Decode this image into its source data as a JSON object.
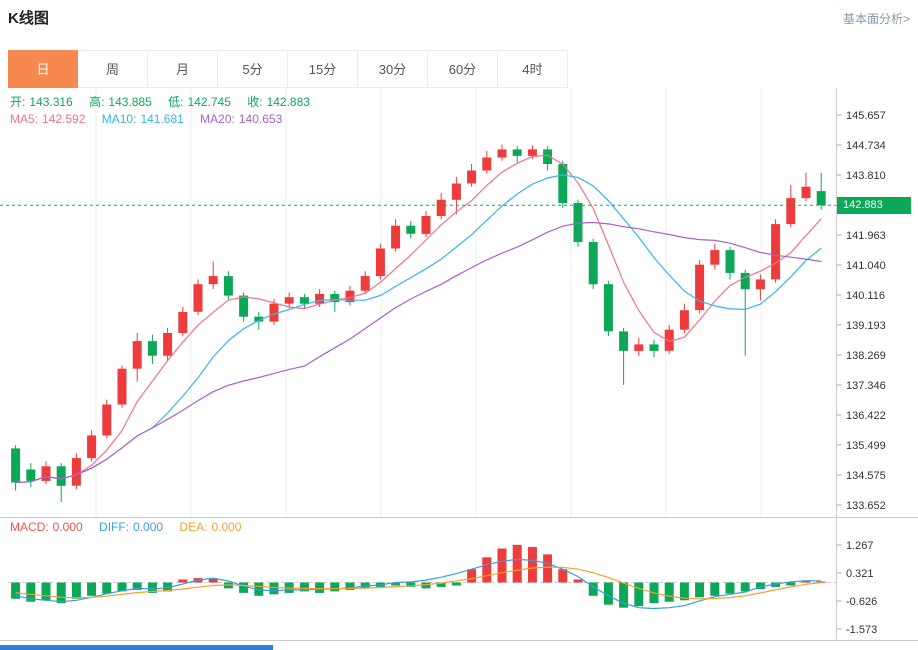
{
  "header": {
    "title": "K线图",
    "link": "基本面分析>"
  },
  "tabs": {
    "items": [
      "日",
      "周",
      "月",
      "5分",
      "15分",
      "30分",
      "60分",
      "4时"
    ],
    "selected_index": 0
  },
  "ohlc": {
    "open_label": "开:",
    "open_value": "143.316",
    "high_label": "高:",
    "high_value": "143.885",
    "low_label": "低:",
    "low_value": "142.745",
    "close_label": "收:",
    "close_value": "142.883"
  },
  "ma": {
    "ma5_label": "MA5:",
    "ma5_value": "142.592",
    "ma10_label": "MA10:",
    "ma10_value": "141.681",
    "ma20_label": "MA20:",
    "ma20_value": "140.653"
  },
  "macd_info": {
    "macd_label": "MACD:",
    "macd_value": "0.000",
    "diff_label": "DIFF:",
    "diff_value": "0.000",
    "dea_label": "DEA:",
    "dea_value": "0.000"
  },
  "price_tag": "142.883",
  "colors": {
    "tab_selected_bg": "#f7884e",
    "up": "#ee3b3b",
    "down": "#0ca757",
    "ma5": "#f2708c",
    "ma10": "#36b5e8",
    "ma20": "#a862c8",
    "diff": "#3a9de8",
    "dea": "#f6a12f",
    "macd_label": "#f05050",
    "link": "#8a97a8",
    "scrollbar": "#2f80d9",
    "grid": "#ededed",
    "axis": "#cccccc",
    "text": "#333333"
  },
  "chart_data": {
    "type": "candlestick",
    "title": "K线图",
    "timeframe": "日",
    "main": {
      "y_axis_labels": [
        "145.657",
        "144.734",
        "143.810",
        "142.883",
        "141.963",
        "141.040",
        "140.116",
        "139.193",
        "138.269",
        "137.346",
        "136.422",
        "135.499",
        "134.575",
        "133.652"
      ],
      "current_price_index": 3,
      "current_price": 142.883,
      "ma_windows": [
        5,
        10,
        20
      ],
      "candles_ohlc": [
        [
          135.4,
          135.5,
          134.1,
          134.35
        ],
        [
          134.75,
          134.95,
          134.2,
          134.4
        ],
        [
          134.4,
          135.0,
          134.3,
          134.85
        ],
        [
          134.85,
          134.95,
          133.75,
          134.25
        ],
        [
          134.25,
          135.25,
          134.15,
          135.1
        ],
        [
          135.1,
          135.95,
          135.0,
          135.8
        ],
        [
          135.8,
          136.9,
          135.7,
          136.75
        ],
        [
          136.75,
          137.95,
          136.65,
          137.85
        ],
        [
          137.85,
          138.95,
          137.45,
          138.7
        ],
        [
          138.7,
          138.9,
          138.0,
          138.25
        ],
        [
          138.25,
          139.1,
          138.1,
          138.95
        ],
        [
          138.95,
          139.75,
          138.85,
          139.6
        ],
        [
          139.6,
          140.6,
          139.5,
          140.45
        ],
        [
          140.45,
          141.15,
          140.3,
          140.7
        ],
        [
          140.7,
          140.85,
          139.95,
          140.1
        ],
        [
          140.1,
          140.2,
          139.3,
          139.45
        ],
        [
          139.45,
          139.6,
          139.05,
          139.3
        ],
        [
          139.3,
          140.0,
          139.2,
          139.85
        ],
        [
          139.85,
          140.2,
          139.7,
          140.05
        ],
        [
          140.05,
          140.15,
          139.7,
          139.85
        ],
        [
          139.85,
          140.3,
          139.75,
          140.15
        ],
        [
          140.15,
          140.25,
          139.6,
          139.9
        ],
        [
          139.9,
          140.4,
          139.8,
          140.25
        ],
        [
          140.25,
          140.85,
          140.15,
          140.7
        ],
        [
          140.7,
          141.7,
          140.6,
          141.55
        ],
        [
          141.55,
          142.45,
          141.45,
          142.25
        ],
        [
          142.25,
          142.4,
          141.85,
          142.0
        ],
        [
          142.0,
          142.7,
          141.9,
          142.55
        ],
        [
          142.55,
          143.25,
          142.45,
          143.05
        ],
        [
          143.05,
          143.75,
          142.6,
          143.55
        ],
        [
          143.55,
          144.15,
          143.45,
          143.95
        ],
        [
          143.95,
          144.55,
          143.85,
          144.35
        ],
        [
          144.35,
          144.75,
          144.25,
          144.6
        ],
        [
          144.6,
          144.7,
          144.2,
          144.4
        ],
        [
          144.4,
          144.73,
          144.3,
          144.6
        ],
        [
          144.6,
          144.7,
          143.95,
          144.15
        ],
        [
          144.15,
          144.25,
          142.8,
          142.95
        ],
        [
          142.95,
          143.05,
          141.6,
          141.75
        ],
        [
          141.75,
          141.85,
          140.3,
          140.45
        ],
        [
          140.45,
          140.55,
          138.85,
          139.0
        ],
        [
          139.0,
          139.1,
          137.35,
          138.4
        ],
        [
          138.4,
          138.8,
          138.25,
          138.6
        ],
        [
          138.6,
          138.75,
          138.2,
          138.4
        ],
        [
          138.4,
          139.2,
          138.3,
          139.05
        ],
        [
          139.05,
          139.85,
          138.95,
          139.65
        ],
        [
          139.65,
          141.2,
          139.55,
          141.05
        ],
        [
          141.05,
          141.7,
          140.9,
          141.5
        ],
        [
          141.5,
          141.6,
          140.6,
          140.8
        ],
        [
          140.8,
          140.9,
          138.25,
          140.3
        ],
        [
          140.3,
          140.75,
          139.95,
          140.6
        ],
        [
          140.6,
          142.45,
          140.5,
          142.3
        ],
        [
          142.3,
          143.5,
          142.2,
          143.1
        ],
        [
          143.1,
          143.88,
          143.0,
          143.45
        ],
        [
          143.316,
          143.885,
          142.745,
          142.883
        ]
      ]
    },
    "macd": {
      "y_axis_labels": [
        "1.267",
        "0.321",
        "-0.626",
        "-1.573"
      ],
      "histogram": [
        -0.55,
        -0.65,
        -0.6,
        -0.7,
        -0.55,
        -0.45,
        -0.38,
        -0.3,
        -0.25,
        -0.35,
        -0.3,
        0.1,
        0.15,
        0.12,
        -0.2,
        -0.35,
        -0.45,
        -0.4,
        -0.35,
        -0.3,
        -0.35,
        -0.3,
        -0.25,
        -0.2,
        -0.15,
        -0.1,
        -0.15,
        -0.2,
        -0.15,
        -0.1,
        0.45,
        0.85,
        1.15,
        1.27,
        1.2,
        0.95,
        0.45,
        0.1,
        -0.45,
        -0.75,
        -0.85,
        -0.8,
        -0.7,
        -0.65,
        -0.6,
        -0.5,
        -0.45,
        -0.38,
        -0.3,
        -0.22,
        -0.15,
        -0.1,
        0.05,
        0.03
      ],
      "diff_line": [
        -0.45,
        -0.55,
        -0.6,
        -0.65,
        -0.6,
        -0.5,
        -0.38,
        -0.28,
        -0.2,
        -0.22,
        -0.18,
        -0.05,
        0.08,
        0.15,
        0.05,
        -0.12,
        -0.25,
        -0.28,
        -0.25,
        -0.25,
        -0.22,
        -0.22,
        -0.18,
        -0.12,
        -0.08,
        0.0,
        0.02,
        0.08,
        0.18,
        0.3,
        0.45,
        0.6,
        0.72,
        0.78,
        0.75,
        0.65,
        0.45,
        0.2,
        -0.15,
        -0.45,
        -0.7,
        -0.85,
        -0.88,
        -0.85,
        -0.78,
        -0.62,
        -0.48,
        -0.4,
        -0.32,
        -0.15,
        -0.05,
        0.02,
        0.06,
        0.05
      ],
      "dea_line": [
        -0.35,
        -0.4,
        -0.45,
        -0.5,
        -0.52,
        -0.5,
        -0.46,
        -0.4,
        -0.34,
        -0.3,
        -0.27,
        -0.22,
        -0.16,
        -0.1,
        -0.08,
        -0.1,
        -0.13,
        -0.17,
        -0.19,
        -0.2,
        -0.21,
        -0.21,
        -0.2,
        -0.19,
        -0.17,
        -0.14,
        -0.11,
        -0.07,
        -0.02,
        0.05,
        0.13,
        0.23,
        0.33,
        0.42,
        0.49,
        0.52,
        0.51,
        0.45,
        0.33,
        0.17,
        -0.02,
        -0.2,
        -0.35,
        -0.46,
        -0.53,
        -0.55,
        -0.54,
        -0.51,
        -0.45,
        -0.35,
        -0.25,
        -0.15,
        -0.06,
        0.0
      ]
    }
  }
}
